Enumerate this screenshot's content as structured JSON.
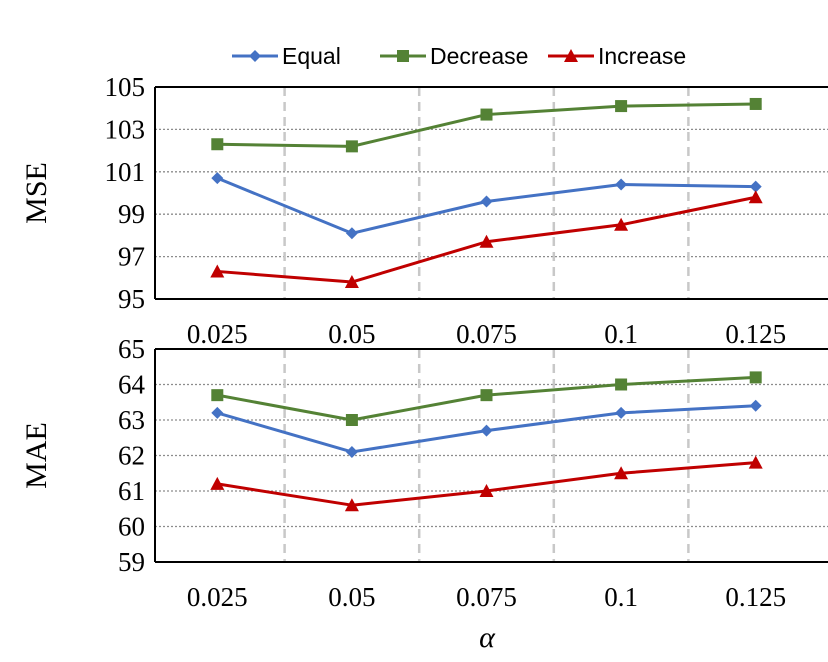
{
  "legend": [
    {
      "label": "Equal",
      "color": "#4472C4",
      "marker": "diamond"
    },
    {
      "label": "Decrease",
      "color": "#548235",
      "marker": "square"
    },
    {
      "label": "Increase",
      "color": "#C00000",
      "marker": "triangle"
    }
  ],
  "chart_data": [
    {
      "type": "line",
      "ylabel": "MSE",
      "xlabel": "",
      "categories": [
        "0.025",
        "0.05",
        "0.075",
        "0.1",
        "0.125"
      ],
      "ylim": [
        95,
        105
      ],
      "yticks": [
        95,
        97,
        99,
        101,
        103,
        105
      ],
      "grid": "horizontal dotted, vertical dashed between categories",
      "series": [
        {
          "name": "Equal",
          "values": [
            100.7,
            98.1,
            99.6,
            100.4,
            100.3
          ]
        },
        {
          "name": "Decrease",
          "values": [
            102.3,
            102.2,
            103.7,
            104.1,
            104.2
          ]
        },
        {
          "name": "Increase",
          "values": [
            96.3,
            95.8,
            97.7,
            98.5,
            99.8
          ]
        }
      ]
    },
    {
      "type": "line",
      "ylabel": "MAE",
      "xlabel": "α",
      "categories": [
        "0.025",
        "0.05",
        "0.075",
        "0.1",
        "0.125"
      ],
      "ylim": [
        59,
        65
      ],
      "yticks": [
        59,
        60,
        61,
        62,
        63,
        64,
        65
      ],
      "grid": "horizontal dotted, vertical dashed between categories",
      "series": [
        {
          "name": "Equal",
          "values": [
            63.2,
            62.1,
            62.7,
            63.2,
            63.4
          ]
        },
        {
          "name": "Decrease",
          "values": [
            63.7,
            63.0,
            63.7,
            64.0,
            64.2
          ]
        },
        {
          "name": "Increase",
          "values": [
            61.2,
            60.6,
            61.0,
            61.5,
            61.8
          ]
        }
      ]
    }
  ]
}
